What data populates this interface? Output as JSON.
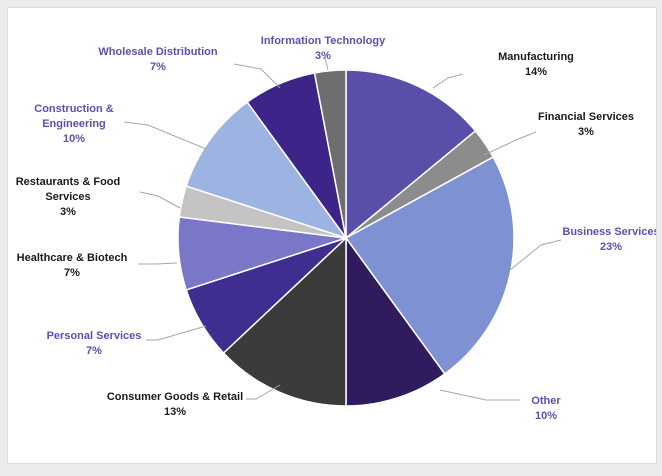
{
  "chart_data": {
    "type": "pie",
    "title": "",
    "slices": [
      {
        "label": "Manufacturing",
        "value": 14,
        "pct_text": "14%",
        "color": "#5a4fa8",
        "label_color": "#1a1a1a"
      },
      {
        "label": "Financial Services",
        "value": 3,
        "pct_text": "3%",
        "color": "#8c8c8c",
        "label_color": "#1a1a1a"
      },
      {
        "label": "Business Services",
        "value": 23,
        "pct_text": "23%",
        "color": "#7e91d3",
        "label_color": "#5b50b0"
      },
      {
        "label": "Other",
        "value": 10,
        "pct_text": "10%",
        "color": "#2f1b5e",
        "label_color": "#5b50b0"
      },
      {
        "label": "Consumer Goods & Retail",
        "value": 13,
        "pct_text": "13%",
        "color": "#3b3b3b",
        "label_color": "#1a1a1a"
      },
      {
        "label": "Personal Services",
        "value": 7,
        "pct_text": "7%",
        "color": "#3f2d8f",
        "label_color": "#5b50b0"
      },
      {
        "label": "Healthcare & Biotech",
        "value": 7,
        "pct_text": "7%",
        "color": "#7a76c8",
        "label_color": "#1a1a1a"
      },
      {
        "label": "Restaurants & Food Services",
        "value": 3,
        "pct_text": "3%",
        "color": "#c4c4c4",
        "label_color": "#1a1a1a"
      },
      {
        "label": "Construction & Engineering",
        "value": 10,
        "pct_text": "10%",
        "color": "#9db3e2",
        "label_color": "#5b50b0"
      },
      {
        "label": "Wholesale Distribution",
        "value": 7,
        "pct_text": "7%",
        "color": "#3d2488",
        "label_color": "#5b50b0"
      },
      {
        "label": "Information Technology",
        "value": 3,
        "pct_text": "3%",
        "color": "#6e6e6e",
        "label_color": "#5b50b0"
      }
    ]
  }
}
